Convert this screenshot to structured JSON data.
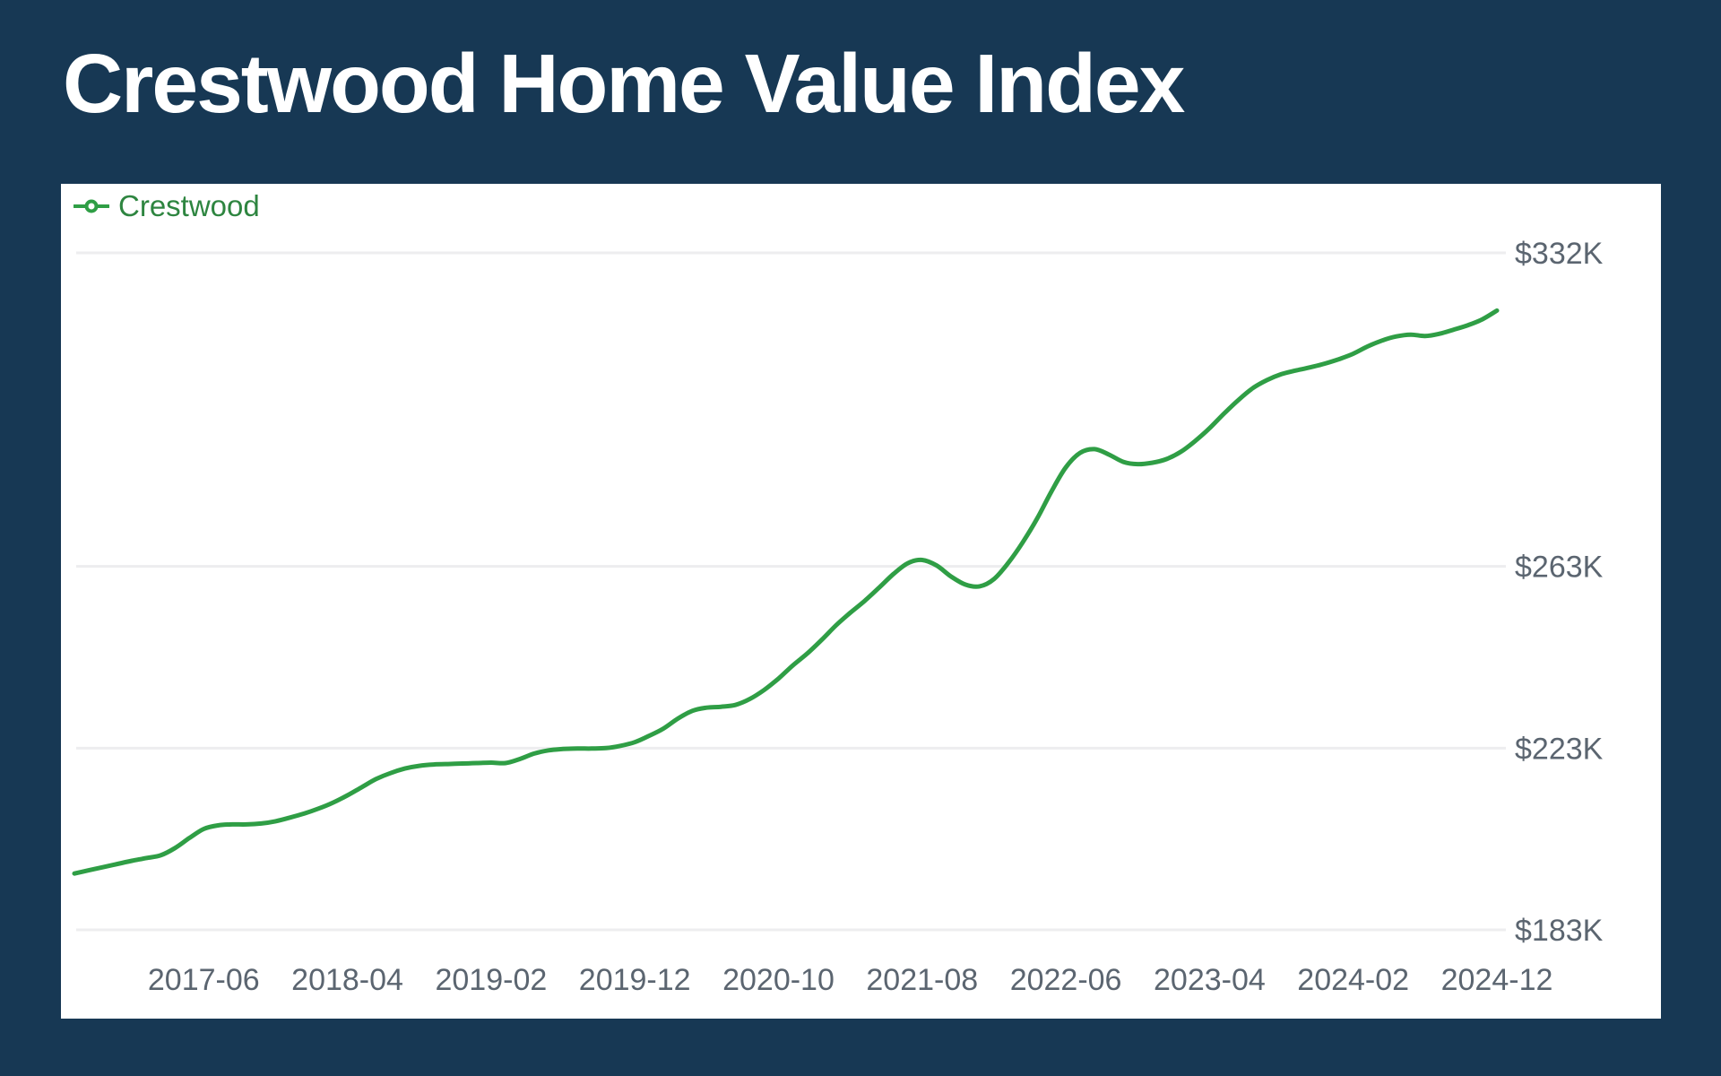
{
  "page": {
    "title": "Crestwood Home Value Index",
    "background_color": "#173854",
    "card_background": "#ffffff"
  },
  "legend": {
    "label": "Crestwood",
    "marker": "line-circle-icon",
    "text_color": "#2e8540",
    "marker_color": "#2f9e45"
  },
  "chart_data": {
    "type": "line",
    "title": "Crestwood Home Value Index",
    "grid": "horizontal",
    "legend_position": "top-left",
    "y_axis_side": "right",
    "y_unit": "USD thousands",
    "x_unit": "month",
    "line_color": "#2f9e45",
    "grid_color": "#ededef",
    "axis_label_color": "#5b6570",
    "y_ticks": [
      {
        "label": "$332K",
        "value": 332
      },
      {
        "label": "$263K",
        "value": 263
      },
      {
        "label": "$223K",
        "value": 223
      },
      {
        "label": "$183K",
        "value": 183
      }
    ],
    "x_tick_labels": [
      "2017-06",
      "2018-04",
      "2019-02",
      "2019-12",
      "2020-10",
      "2021-08",
      "2022-06",
      "2023-04",
      "2024-02",
      "2024-12"
    ],
    "series": [
      {
        "name": "Crestwood",
        "color": "#2f9e45",
        "interval": "monthly",
        "start_month": "2016-09",
        "end_month": "2024-12",
        "values_k": [
          195.4,
          196.1,
          196.8,
          197.5,
          198.2,
          198.8,
          199.4,
          201.0,
          203.2,
          205.2,
          206.0,
          206.2,
          206.2,
          206.4,
          206.9,
          207.7,
          208.6,
          209.7,
          211.0,
          212.6,
          214.4,
          216.2,
          217.5,
          218.5,
          219.1,
          219.4,
          219.5,
          219.6,
          219.7,
          219.8,
          219.7,
          220.6,
          221.8,
          222.5,
          222.8,
          222.9,
          222.9,
          223.0,
          223.5,
          224.3,
          225.7,
          227.3,
          229.5,
          231.2,
          231.9,
          232.1,
          232.5,
          233.8,
          235.8,
          238.3,
          241.2,
          243.8,
          246.8,
          250.0,
          252.8,
          255.4,
          258.3,
          261.3,
          263.7,
          264.4,
          263.2,
          260.8,
          259.0,
          258.6,
          260.2,
          263.8,
          268.3,
          273.5,
          279.5,
          284.8,
          288.0,
          288.8,
          287.6,
          286.0,
          285.5,
          285.8,
          286.6,
          288.2,
          290.6,
          293.4,
          296.6,
          299.6,
          302.2,
          304.0,
          305.3,
          306.1,
          306.8,
          307.6,
          308.6,
          309.8,
          311.4,
          312.7,
          313.6,
          314.0,
          313.7,
          314.2,
          315.1,
          316.1,
          317.4,
          319.3
        ]
      }
    ]
  }
}
